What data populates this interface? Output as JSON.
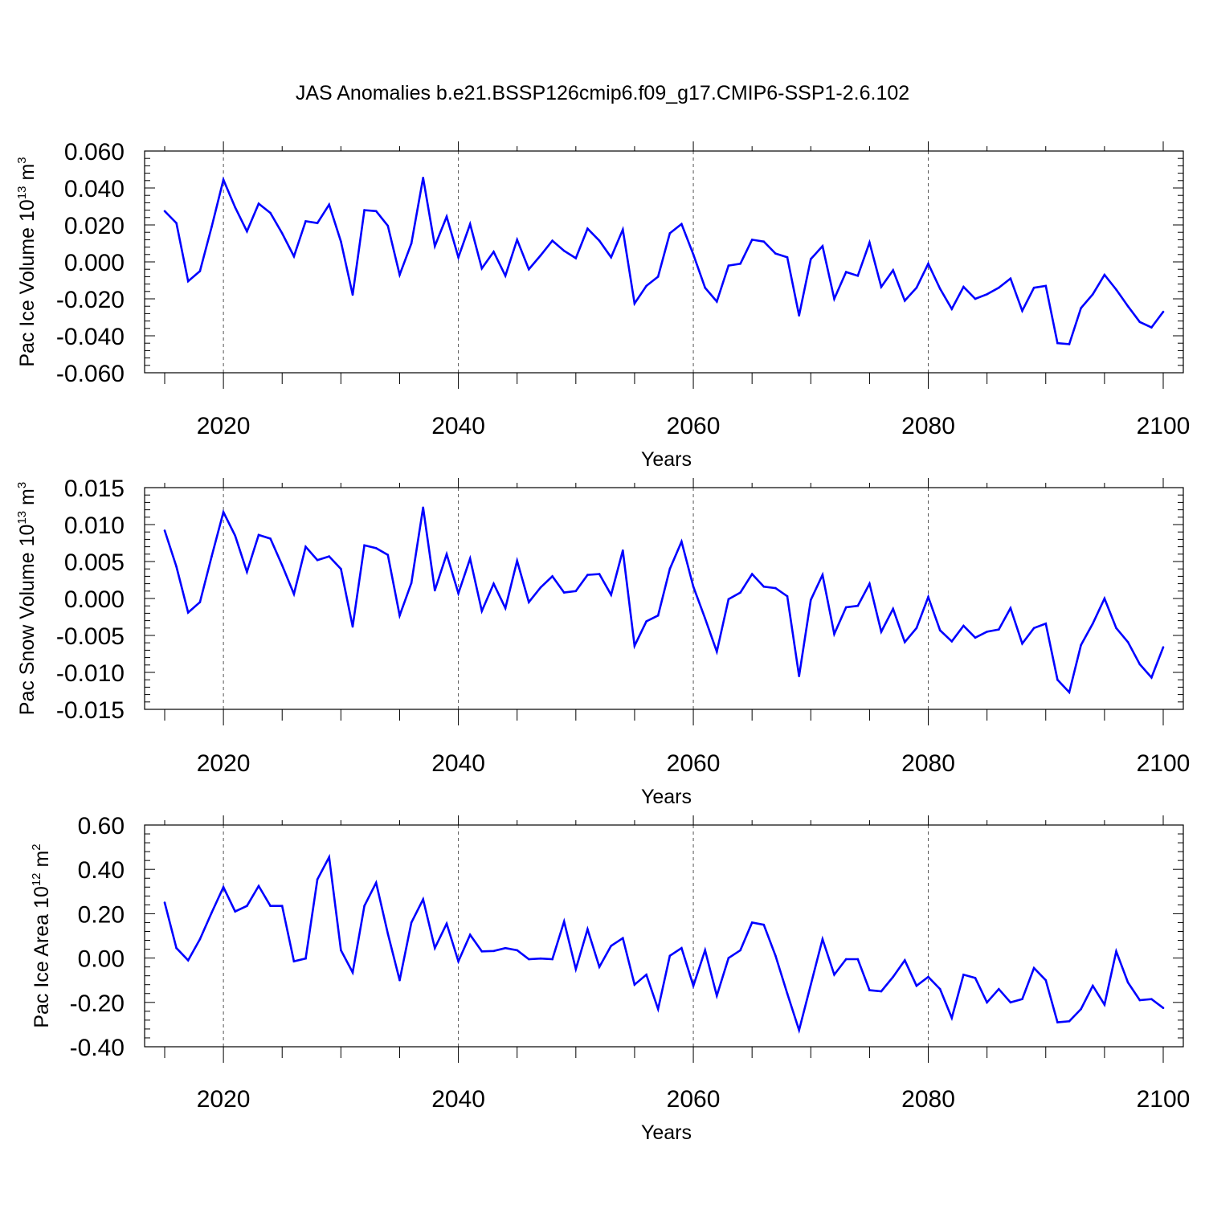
{
  "title": "JAS Anomalies b.e21.BSSP126cmip6.f09_g17.CMIP6-SSP1-2.6.102",
  "colors": {
    "line": "#0000ff",
    "axis": "#000000",
    "grid": "#555555"
  },
  "chart_data": [
    {
      "type": "line",
      "ylabel": "Pac Ice Volume 10",
      "ylabel_exp": "13",
      "ylabel_unit": " m",
      "ylabel_unit_exp": "3",
      "xlabel": "Years",
      "xlim": [
        2015,
        2100
      ],
      "ylim": [
        -0.06,
        0.06
      ],
      "x_ticks": [
        2020,
        2040,
        2060,
        2080,
        2100
      ],
      "x_tick_labels": [
        "2020",
        "2040",
        "2060",
        "2080",
        "2100"
      ],
      "y_ticks": [
        -0.06,
        -0.04,
        -0.02,
        0.0,
        0.02,
        0.04,
        0.06
      ],
      "y_tick_labels": [
        "-0.060",
        "-0.040",
        "-0.020",
        "0.000",
        "0.020",
        "0.040",
        "0.060"
      ],
      "vgrid": [
        2020,
        2040,
        2060,
        2080
      ],
      "series": [
        {
          "x_start": 2015,
          "values": [
            0.0275,
            0.021,
            -0.0105,
            -0.005,
            0.019,
            0.0445,
            0.0295,
            0.0165,
            0.0315,
            0.0265,
            0.0155,
            0.003,
            0.022,
            0.021,
            0.031,
            0.011,
            -0.0178,
            0.028,
            0.0275,
            0.0195,
            -0.007,
            0.01,
            0.0455,
            0.0085,
            0.0245,
            0.0025,
            0.0205,
            -0.0035,
            0.0055,
            -0.0075,
            0.012,
            -0.004,
            0.0035,
            0.0115,
            0.006,
            0.002,
            0.018,
            0.0115,
            0.0025,
            0.0175,
            -0.0225,
            -0.013,
            -0.008,
            0.0155,
            0.0205,
            0.004,
            -0.014,
            -0.0215,
            -0.002,
            -0.001,
            0.012,
            0.011,
            0.0045,
            0.0025,
            -0.029,
            0.0015,
            0.0085,
            -0.02,
            -0.0055,
            -0.0075,
            0.0105,
            -0.0135,
            -0.0045,
            -0.021,
            -0.014,
            -0.001,
            -0.0145,
            -0.0255,
            -0.0135,
            -0.02,
            -0.0175,
            -0.014,
            -0.009,
            -0.0265,
            -0.014,
            -0.013,
            -0.044,
            -0.0445,
            -0.025,
            -0.0175,
            -0.007,
            -0.015,
            -0.024,
            -0.0325,
            -0.0355,
            -0.027
          ]
        }
      ]
    },
    {
      "type": "line",
      "ylabel": "Pac Snow Volume 10",
      "ylabel_exp": "13",
      "ylabel_unit": " m",
      "ylabel_unit_exp": "3",
      "xlabel": "Years",
      "xlim": [
        2015,
        2100
      ],
      "ylim": [
        -0.015,
        0.015
      ],
      "x_ticks": [
        2020,
        2040,
        2060,
        2080,
        2100
      ],
      "x_tick_labels": [
        "2020",
        "2040",
        "2060",
        "2080",
        "2100"
      ],
      "y_ticks": [
        -0.015,
        -0.01,
        -0.005,
        0.0,
        0.005,
        0.01,
        0.015
      ],
      "y_tick_labels": [
        "-0.015",
        "-0.010",
        "-0.005",
        "0.000",
        "0.005",
        "0.010",
        "0.015"
      ],
      "vgrid": [
        2020,
        2040,
        2060,
        2080
      ],
      "series": [
        {
          "x_start": 2015,
          "values": [
            0.0092,
            0.0043,
            -0.0019,
            -0.0005,
            0.0057,
            0.0117,
            0.0085,
            0.0036,
            0.0086,
            0.0081,
            0.0045,
            0.0006,
            0.007,
            0.0052,
            0.0057,
            0.004,
            -0.0038,
            0.0072,
            0.0068,
            0.0059,
            -0.0023,
            0.0021,
            0.0123,
            0.0011,
            0.006,
            0.0007,
            0.0054,
            -0.0017,
            0.002,
            -0.0013,
            0.0051,
            -0.0005,
            0.0015,
            0.003,
            0.0008,
            0.001,
            0.0032,
            0.0033,
            0.0005,
            0.0065,
            -0.0064,
            -0.0031,
            -0.0023,
            0.004,
            0.0077,
            0.0016,
            -0.0027,
            -0.0072,
            -0.0001,
            0.0008,
            0.0033,
            0.0016,
            0.0014,
            0.0003,
            -0.0105,
            -0.0002,
            0.0032,
            -0.0048,
            -0.0012,
            -0.001,
            0.002,
            -0.0045,
            -0.0014,
            -0.0059,
            -0.004,
            0.0002,
            -0.0043,
            -0.0058,
            -0.0037,
            -0.0053,
            -0.0045,
            -0.0042,
            -0.0013,
            -0.0061,
            -0.004,
            -0.0034,
            -0.011,
            -0.0127,
            -0.0063,
            -0.0034,
            0.0,
            -0.004,
            -0.0059,
            -0.0089,
            -0.0107,
            -0.0066
          ]
        }
      ]
    },
    {
      "type": "line",
      "ylabel": "Pac Ice Area 10",
      "ylabel_exp": "12",
      "ylabel_unit": " m",
      "ylabel_unit_exp": "2",
      "xlabel": "Years",
      "xlim": [
        2015,
        2100
      ],
      "ylim": [
        -0.4,
        0.6
      ],
      "x_ticks": [
        2020,
        2040,
        2060,
        2080,
        2100
      ],
      "x_tick_labels": [
        "2020",
        "2040",
        "2060",
        "2080",
        "2100"
      ],
      "y_ticks": [
        -0.4,
        -0.2,
        0.0,
        0.2,
        0.4,
        0.6
      ],
      "y_tick_labels": [
        "-0.40",
        "-0.20",
        "0.00",
        "0.20",
        "0.40",
        "0.60"
      ],
      "vgrid": [
        2020,
        2040,
        2060,
        2080
      ],
      "series": [
        {
          "x_start": 2015,
          "values": [
            0.25,
            0.045,
            -0.01,
            0.085,
            0.205,
            0.32,
            0.21,
            0.235,
            0.325,
            0.235,
            0.235,
            -0.015,
            -0.002,
            0.355,
            0.455,
            0.035,
            -0.065,
            0.235,
            0.34,
            0.11,
            -0.1,
            0.16,
            0.265,
            0.045,
            0.155,
            -0.015,
            0.105,
            0.03,
            0.032,
            0.045,
            0.035,
            -0.005,
            -0.002,
            -0.005,
            0.165,
            -0.05,
            0.13,
            -0.04,
            0.055,
            0.09,
            -0.12,
            -0.075,
            -0.23,
            0.01,
            0.045,
            -0.125,
            0.035,
            -0.17,
            0.0,
            0.035,
            0.16,
            0.15,
            0.01,
            -0.16,
            -0.325,
            -0.12,
            0.085,
            -0.075,
            -0.005,
            -0.005,
            -0.145,
            -0.15,
            -0.085,
            -0.01,
            -0.125,
            -0.085,
            -0.14,
            -0.27,
            -0.075,
            -0.09,
            -0.2,
            -0.14,
            -0.2,
            -0.185,
            -0.045,
            -0.1,
            -0.29,
            -0.285,
            -0.23,
            -0.125,
            -0.21,
            0.03,
            -0.11,
            -0.19,
            -0.185,
            -0.225
          ]
        }
      ]
    }
  ]
}
